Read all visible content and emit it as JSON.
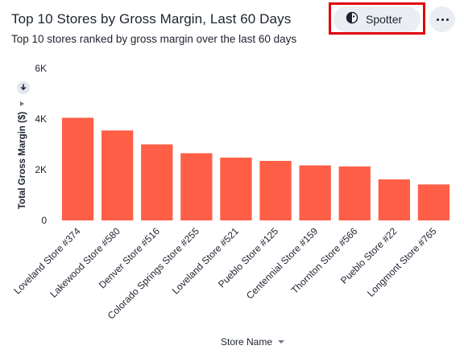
{
  "header": {
    "title": "Top 10 Stores by Gross Margin, Last 60 Days",
    "subtitle": "Top 10 stores ranked by gross margin over the last 60 days"
  },
  "toolbar": {
    "spotter_label": "Spotter",
    "spotter_icon": "spotter-icon",
    "more_icon": "more-options-icon",
    "highlight_color": "#e0000b"
  },
  "chart_data": {
    "type": "bar",
    "categories": [
      "Loveland Store #374",
      "Lakewood Store #580",
      "Denver Store #516",
      "Colorado Springs Store #255",
      "Loveland Store #521",
      "Pueblo Store #125",
      "Centennial Store #159",
      "Thornton Store #566",
      "Pueblo Store #22",
      "Longmont Store #765"
    ],
    "values": [
      4050,
      3550,
      3000,
      2650,
      2480,
      2350,
      2170,
      2130,
      1620,
      1420
    ],
    "xlabel": "Store Name",
    "ylabel": "Total Gross Margin ($)",
    "ylim": [
      0,
      6000
    ],
    "yticks": [
      "0",
      "2K",
      "4K",
      "6K"
    ],
    "yticks_values": [
      0,
      2000,
      4000,
      6000
    ],
    "bar_color": "#ff5e47",
    "grid": false,
    "legend": "none"
  }
}
